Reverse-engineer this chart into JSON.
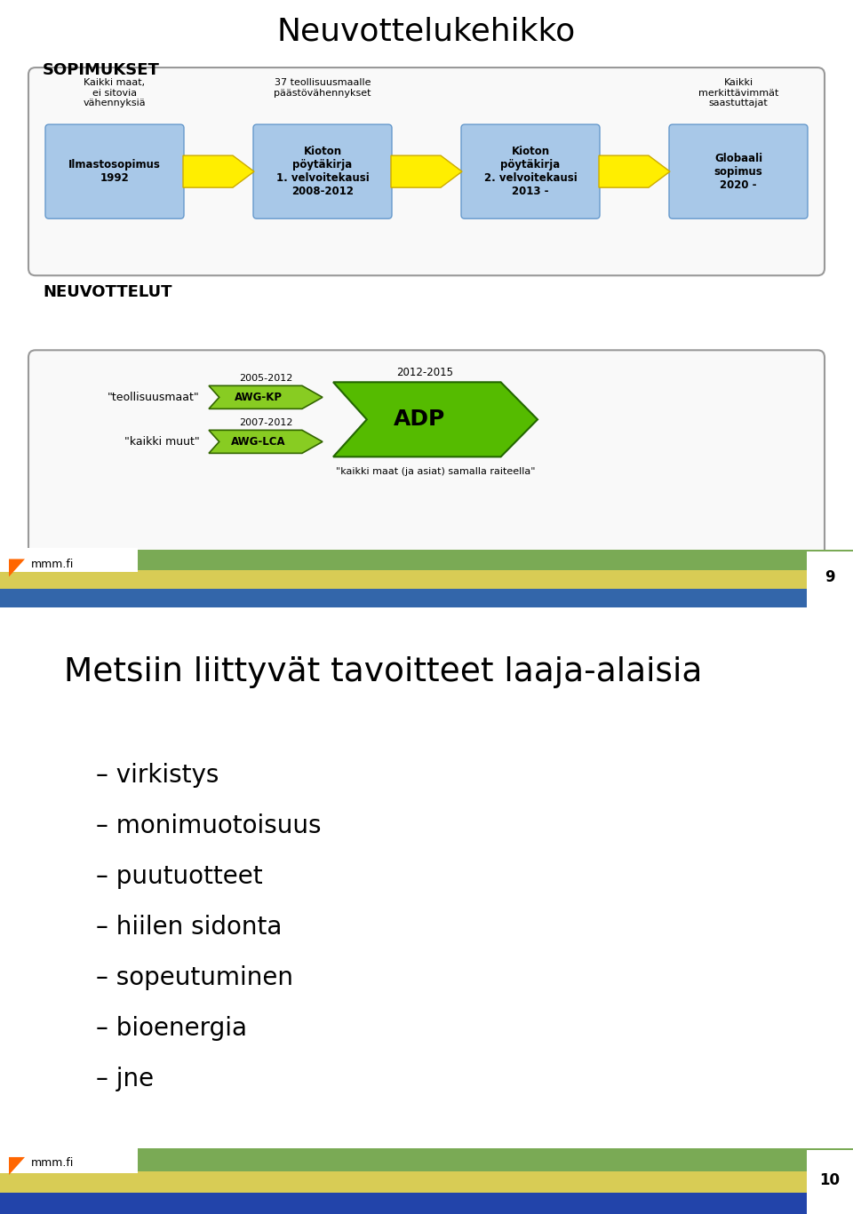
{
  "title1": "Neuvottelukehikko",
  "section1": "SOPIMUKSET",
  "section2": "NEUVOTTELUT",
  "title2": "Metsiin liittyvät tavoitteet laaja-alaisia",
  "box_color": "#a8c8e8",
  "box_edge_color": "#6699cc",
  "arrow_yellow": "#ffee00",
  "arrow_yellow_edge": "#ccaa00",
  "big_box_bg": "#f9f9f9",
  "big_box_border": "#888888",
  "notes": [
    "Kaikki maat,\nei sitovia\nvähennyksiä",
    "37 teollisuusmaalle\npäästövähennykset",
    "",
    "Kaikki\nmerkittävimmät\nsaastuttajat"
  ],
  "box_texts": [
    "Ilmastosopimus\n1992",
    "Kioton\npöytäkirja\n1. velvoitekausi\n2008-2012",
    "Kioton\npöytäkirja\n2. velvoitekausi\n2013 -",
    "Globaali\nsopimus\n2020 -"
  ],
  "row_labels": [
    "\"teollisuusmaat\"",
    "\"kaikki muut\""
  ],
  "year_labels": [
    "2005-2012",
    "2007-2012"
  ],
  "small_arrow_labels": [
    "AWG-KP",
    "AWG-LCA"
  ],
  "small_arrow_color": "#88cc22",
  "small_arrow_edge": "#336600",
  "adp_label": "ADP",
  "adp_year": "2012-2015",
  "adp_note": "\"kaikki maat (ja asiat) samalla raiteella\"",
  "adp_color": "#55bb00",
  "adp_edge": "#226600",
  "slide2_items": [
    "– virkistys",
    "– monimuotoisuus",
    "– puutuotteet",
    "– hiilen sidonta",
    "– sopeutuminen",
    "– bioenergia",
    "– jne"
  ],
  "page_num1": "9",
  "page_num2": "10",
  "bg_color": "#ffffff",
  "footer_green": "#7aaa55",
  "footer_yellow": "#d8cc55",
  "footer_blue": "#3366aa",
  "footer_dark": "#2244aa"
}
